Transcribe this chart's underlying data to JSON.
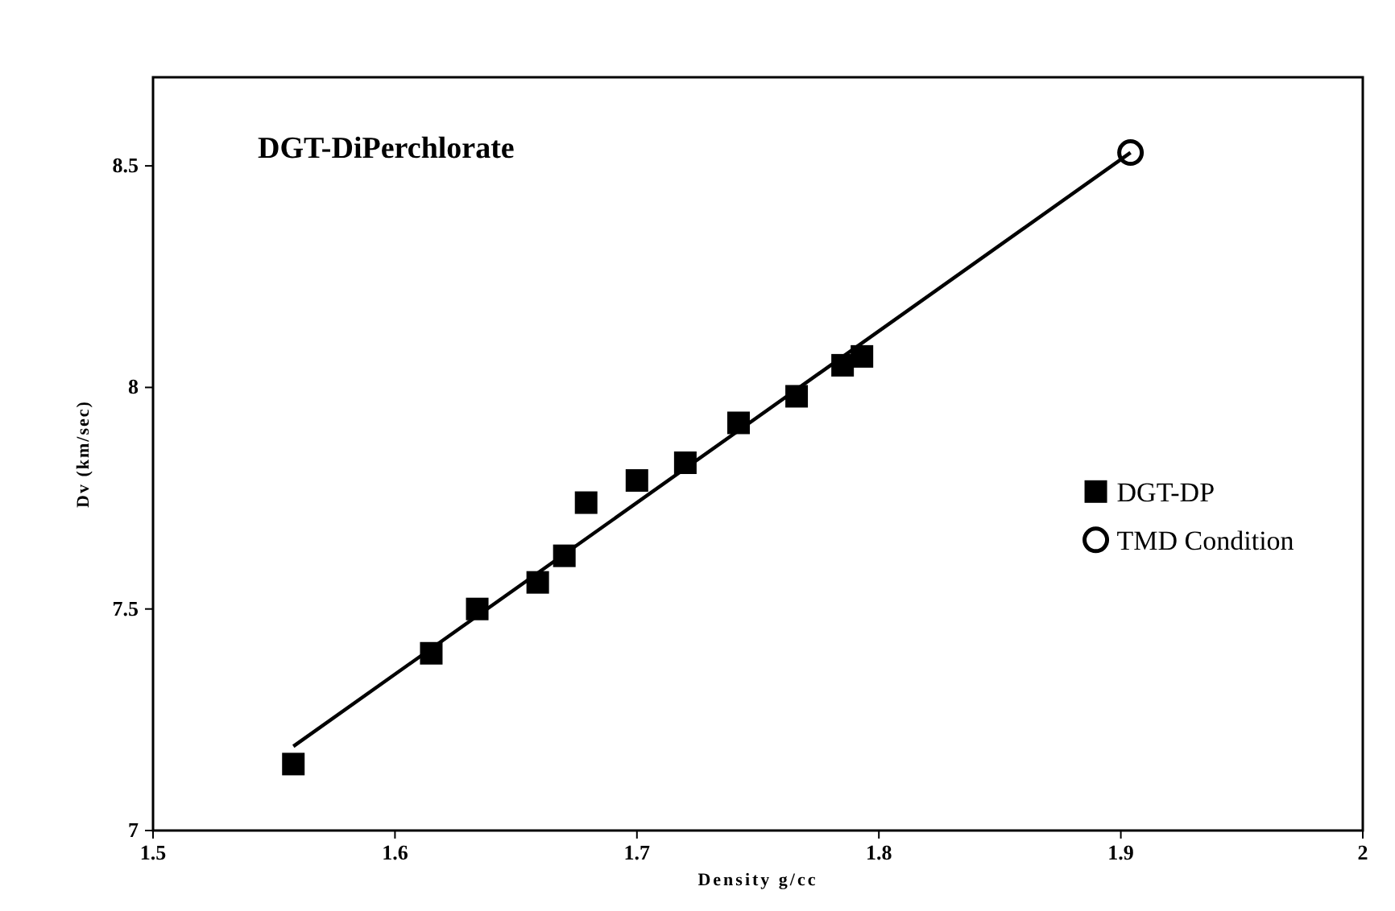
{
  "chart_data": {
    "type": "scatter",
    "title": "DGT-DiPerchlorate",
    "xlabel": "Density g/cc",
    "ylabel": "Dv (km/sec)",
    "xlim": [
      1.5,
      2
    ],
    "xticks": [
      1.5,
      1.6,
      1.7,
      1.8,
      1.9,
      2
    ],
    "ylim": [
      7,
      8.7
    ],
    "yticks": [
      7,
      7.5,
      8,
      8.5
    ],
    "grid": false,
    "legend": "right",
    "series": [
      {
        "type": "line",
        "color": "#000000",
        "marker": "none",
        "line_style": "solid",
        "x": [
          1.558,
          1.904
        ],
        "values": [
          7.19,
          8.53
        ]
      },
      {
        "name": "DGT-DP",
        "color": "#000000",
        "marker": "square",
        "x": [
          1.558,
          1.615,
          1.634,
          1.659,
          1.67,
          1.679,
          1.7,
          1.72,
          1.742,
          1.766,
          1.785,
          1.793
        ],
        "values": [
          7.15,
          7.4,
          7.5,
          7.56,
          7.62,
          7.74,
          7.79,
          7.83,
          7.92,
          7.98,
          8.05,
          8.07
        ]
      },
      {
        "name": "TMD Condition",
        "color": "#000000",
        "marker": "circle",
        "x": [
          1.904
        ],
        "values": [
          8.53
        ]
      }
    ]
  }
}
